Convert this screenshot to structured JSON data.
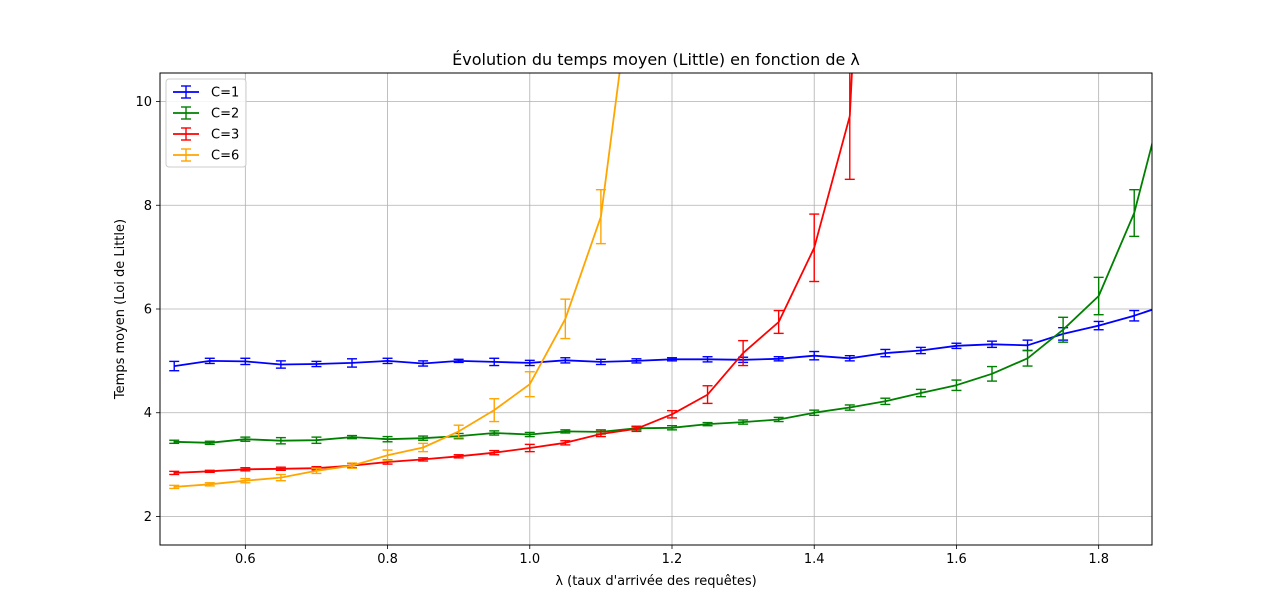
{
  "chart_data": {
    "type": "line",
    "title": "Évolution du temps moyen (Little) en fonction de λ",
    "xlabel": "λ (taux d'arrivée des requêtes)",
    "ylabel": "Temps moyen (Loi de Little)",
    "xlim": [
      0.48,
      1.875
    ],
    "ylim": [
      1.45,
      10.55
    ],
    "xticks": [
      0.6,
      0.8,
      1.0,
      1.2,
      1.4,
      1.6,
      1.8
    ],
    "xtick_labels": [
      "0.6",
      "0.8",
      "1.0",
      "1.2",
      "1.4",
      "1.6",
      "1.8"
    ],
    "yticks": [
      2,
      4,
      6,
      8,
      10
    ],
    "ytick_labels": [
      "2",
      "4",
      "6",
      "8",
      "10"
    ],
    "grid": true,
    "legend_position": "top-left",
    "series": [
      {
        "name": "C=1",
        "color": "#0000ff",
        "x": [
          0.5,
          0.55,
          0.6,
          0.65,
          0.7,
          0.75,
          0.8,
          0.85,
          0.9,
          0.95,
          1.0,
          1.05,
          1.1,
          1.15,
          1.2,
          1.25,
          1.3,
          1.35,
          1.4,
          1.45,
          1.5,
          1.55,
          1.6,
          1.65,
          1.7,
          1.75,
          1.8,
          1.85,
          1.9
        ],
        "y": [
          4.9,
          5.0,
          4.99,
          4.93,
          4.94,
          4.96,
          5.0,
          4.95,
          5.0,
          4.98,
          4.96,
          5.01,
          4.98,
          5.0,
          5.03,
          5.03,
          5.02,
          5.04,
          5.1,
          5.05,
          5.15,
          5.2,
          5.29,
          5.32,
          5.3,
          5.52,
          5.68,
          5.87,
          6.1
        ],
        "err": [
          0.09,
          0.05,
          0.06,
          0.07,
          0.05,
          0.08,
          0.05,
          0.05,
          0.03,
          0.07,
          0.05,
          0.05,
          0.05,
          0.04,
          0.03,
          0.05,
          0.05,
          0.04,
          0.08,
          0.05,
          0.07,
          0.06,
          0.05,
          0.06,
          0.1,
          0.12,
          0.08,
          0.1,
          0.1
        ]
      },
      {
        "name": "C=2",
        "color": "#008000",
        "x": [
          0.5,
          0.55,
          0.6,
          0.65,
          0.7,
          0.75,
          0.8,
          0.85,
          0.9,
          0.95,
          1.0,
          1.05,
          1.1,
          1.15,
          1.2,
          1.25,
          1.3,
          1.35,
          1.4,
          1.45,
          1.5,
          1.55,
          1.6,
          1.65,
          1.7,
          1.75,
          1.8,
          1.85,
          1.9
        ],
        "y": [
          3.44,
          3.42,
          3.49,
          3.46,
          3.47,
          3.53,
          3.49,
          3.51,
          3.55,
          3.61,
          3.58,
          3.64,
          3.63,
          3.7,
          3.71,
          3.78,
          3.82,
          3.87,
          4.0,
          4.1,
          4.22,
          4.38,
          4.53,
          4.75,
          5.05,
          5.6,
          6.25,
          7.85,
          10.5
        ],
        "err": [
          0.03,
          0.03,
          0.04,
          0.06,
          0.06,
          0.03,
          0.05,
          0.04,
          0.05,
          0.04,
          0.04,
          0.03,
          0.04,
          0.03,
          0.04,
          0.03,
          0.04,
          0.04,
          0.05,
          0.05,
          0.06,
          0.07,
          0.1,
          0.14,
          0.15,
          0.24,
          0.36,
          0.45,
          0.6
        ]
      },
      {
        "name": "C=3",
        "color": "#ff0000",
        "x": [
          0.5,
          0.55,
          0.6,
          0.65,
          0.7,
          0.75,
          0.8,
          0.85,
          0.9,
          0.95,
          1.0,
          1.05,
          1.1,
          1.15,
          1.2,
          1.25,
          1.3,
          1.35,
          1.4,
          1.45,
          1.46
        ],
        "y": [
          2.84,
          2.87,
          2.91,
          2.92,
          2.93,
          2.98,
          3.05,
          3.1,
          3.16,
          3.23,
          3.32,
          3.42,
          3.59,
          3.69,
          3.97,
          4.35,
          5.15,
          5.75,
          7.18,
          9.72,
          12.5
        ],
        "err": [
          0.03,
          0.02,
          0.03,
          0.03,
          0.03,
          0.04,
          0.04,
          0.03,
          0.03,
          0.04,
          0.07,
          0.04,
          0.05,
          0.05,
          0.07,
          0.17,
          0.24,
          0.22,
          0.65,
          1.22,
          1.5
        ]
      },
      {
        "name": "C=6",
        "color": "#ffa500",
        "x": [
          0.5,
          0.55,
          0.6,
          0.65,
          0.7,
          0.75,
          0.8,
          0.85,
          0.9,
          0.95,
          1.0,
          1.05,
          1.1,
          1.14
        ],
        "y": [
          2.57,
          2.62,
          2.69,
          2.75,
          2.88,
          2.98,
          3.18,
          3.33,
          3.64,
          4.05,
          4.55,
          5.81,
          7.78,
          12.0
        ],
        "err": [
          0.03,
          0.03,
          0.04,
          0.06,
          0.05,
          0.05,
          0.1,
          0.08,
          0.12,
          0.22,
          0.24,
          0.38,
          0.52,
          0.5
        ]
      }
    ]
  }
}
